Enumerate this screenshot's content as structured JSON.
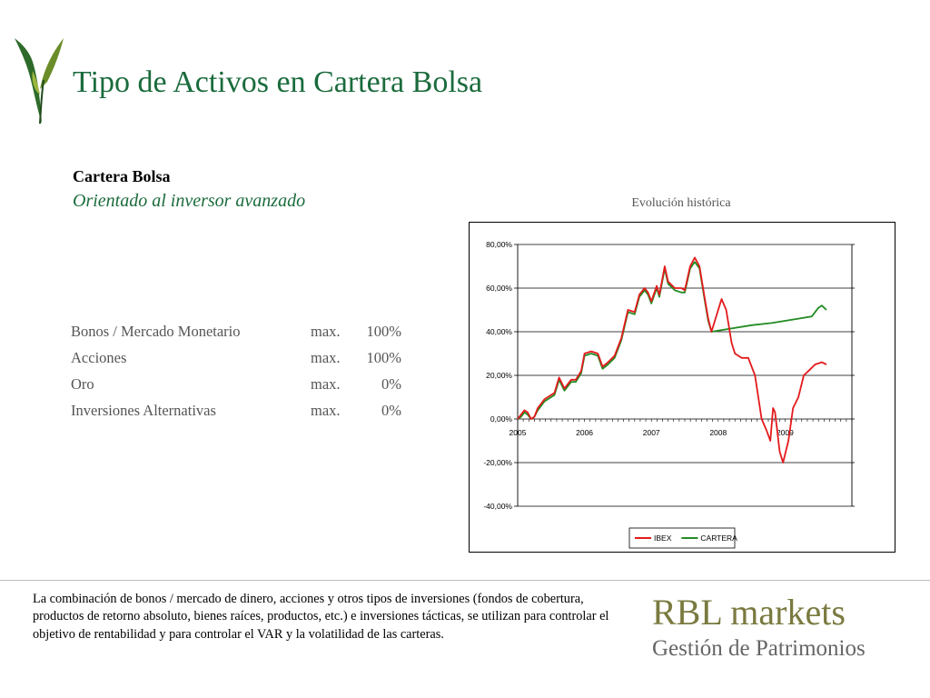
{
  "header": {
    "title": "Tipo de Activos en Cartera Bolsa"
  },
  "colors": {
    "title_green": "#1a6b3c",
    "ibex_red": "#e41a1c",
    "cartera_green": "#228b22",
    "brand_olive": "#7a7a40"
  },
  "logo": {
    "icon": "leaf-sprout-icon"
  },
  "portfolio": {
    "name": "Cartera Bolsa",
    "subtitle": "Orientado al inversor avanzado",
    "allocations": [
      {
        "asset": "Bonos / Mercado Monetario",
        "limit": "max.",
        "value": "100%"
      },
      {
        "asset": "Acciones",
        "limit": "max.",
        "value": "100%"
      },
      {
        "asset": "Oro",
        "limit": "max.",
        "value": "0%"
      },
      {
        "asset": "Inversiones Alternativas",
        "limit": "max.",
        "value": "0%"
      }
    ]
  },
  "chart_caption": "Evolución histórica",
  "chart_data": {
    "type": "line",
    "title": "Evolución histórica",
    "xlabel": "",
    "ylabel": "",
    "xlim": [
      2005,
      2010
    ],
    "ylim": [
      -40,
      80
    ],
    "x_ticks": [
      "2005",
      "2006",
      "2007",
      "2008",
      "2009"
    ],
    "y_ticks": [
      "80,00%",
      "60,00%",
      "40,00%",
      "20,00%",
      "0,00%",
      "-20,00%",
      "-40,00%"
    ],
    "grid": true,
    "legend_position": "bottom",
    "series": [
      {
        "name": "IBEX",
        "color": "#e41a1c",
        "points": [
          [
            2005.0,
            0
          ],
          [
            2005.05,
            2
          ],
          [
            2005.1,
            4
          ],
          [
            2005.15,
            3
          ],
          [
            2005.2,
            0
          ],
          [
            2005.25,
            1
          ],
          [
            2005.3,
            5
          ],
          [
            2005.4,
            9
          ],
          [
            2005.5,
            11
          ],
          [
            2005.55,
            12
          ],
          [
            2005.62,
            19
          ],
          [
            2005.7,
            14
          ],
          [
            2005.8,
            18
          ],
          [
            2005.87,
            18
          ],
          [
            2005.95,
            22
          ],
          [
            2006.0,
            30
          ],
          [
            2006.1,
            31
          ],
          [
            2006.2,
            30
          ],
          [
            2006.27,
            24
          ],
          [
            2006.35,
            26
          ],
          [
            2006.45,
            29
          ],
          [
            2006.55,
            37
          ],
          [
            2006.65,
            50
          ],
          [
            2006.75,
            49
          ],
          [
            2006.82,
            57
          ],
          [
            2006.9,
            60
          ],
          [
            2006.95,
            58
          ],
          [
            2007.0,
            54
          ],
          [
            2007.08,
            61
          ],
          [
            2007.12,
            57
          ],
          [
            2007.2,
            70
          ],
          [
            2007.25,
            63
          ],
          [
            2007.35,
            60
          ],
          [
            2007.45,
            60
          ],
          [
            2007.5,
            59
          ],
          [
            2007.58,
            70
          ],
          [
            2007.65,
            74
          ],
          [
            2007.72,
            70
          ],
          [
            2007.8,
            55
          ],
          [
            2007.85,
            46
          ],
          [
            2007.9,
            40
          ],
          [
            2007.95,
            45
          ],
          [
            2008.05,
            55
          ],
          [
            2008.12,
            50
          ],
          [
            2008.2,
            35
          ],
          [
            2008.25,
            30
          ],
          [
            2008.35,
            28
          ],
          [
            2008.45,
            28
          ],
          [
            2008.55,
            20
          ],
          [
            2008.65,
            0
          ],
          [
            2008.72,
            -5
          ],
          [
            2008.78,
            -10
          ],
          [
            2008.82,
            5
          ],
          [
            2008.85,
            3
          ],
          [
            2008.92,
            -15
          ],
          [
            2008.97,
            -20
          ],
          [
            2009.05,
            -10
          ],
          [
            2009.12,
            5
          ],
          [
            2009.2,
            10
          ],
          [
            2009.28,
            20
          ],
          [
            2009.35,
            22
          ],
          [
            2009.45,
            25
          ],
          [
            2009.55,
            26
          ],
          [
            2009.62,
            25
          ]
        ]
      },
      {
        "name": "CARTERA",
        "color": "#228b22",
        "points": [
          [
            2005.0,
            0
          ],
          [
            2005.05,
            1
          ],
          [
            2005.1,
            3
          ],
          [
            2005.15,
            2
          ],
          [
            2005.2,
            0
          ],
          [
            2005.25,
            1
          ],
          [
            2005.3,
            4
          ],
          [
            2005.4,
            8
          ],
          [
            2005.5,
            10
          ],
          [
            2005.55,
            11
          ],
          [
            2005.62,
            18
          ],
          [
            2005.7,
            13
          ],
          [
            2005.8,
            17
          ],
          [
            2005.87,
            17
          ],
          [
            2005.95,
            21
          ],
          [
            2006.0,
            29
          ],
          [
            2006.1,
            30
          ],
          [
            2006.2,
            29
          ],
          [
            2006.27,
            23
          ],
          [
            2006.35,
            25
          ],
          [
            2006.45,
            28
          ],
          [
            2006.55,
            36
          ],
          [
            2006.65,
            49
          ],
          [
            2006.75,
            48
          ],
          [
            2006.82,
            56
          ],
          [
            2006.9,
            59
          ],
          [
            2006.95,
            57
          ],
          [
            2007.0,
            53
          ],
          [
            2007.08,
            60
          ],
          [
            2007.12,
            56
          ],
          [
            2007.2,
            69
          ],
          [
            2007.25,
            62
          ],
          [
            2007.35,
            59
          ],
          [
            2007.45,
            58
          ],
          [
            2007.5,
            58
          ],
          [
            2007.58,
            69
          ],
          [
            2007.65,
            72
          ],
          [
            2007.72,
            69
          ],
          [
            2007.8,
            54
          ],
          [
            2007.85,
            45
          ],
          [
            2007.9,
            40
          ],
          [
            2008.0,
            40.5
          ],
          [
            2008.2,
            41.5
          ],
          [
            2008.5,
            43
          ],
          [
            2008.8,
            44
          ],
          [
            2009.0,
            45
          ],
          [
            2009.2,
            46
          ],
          [
            2009.4,
            47
          ],
          [
            2009.5,
            51
          ],
          [
            2009.55,
            52
          ],
          [
            2009.62,
            50
          ]
        ]
      }
    ]
  },
  "footer": {
    "description": "La combinación de bonos / mercado de dinero, acciones y otros tipos de inversiones (fondos de cobertura, productos de retorno absoluto, bienes raíces, productos, etc.) e inversiones tácticas, se utilizan para controlar el objetivo de rentabilidad y para controlar el VAR y la volatilidad de las carteras.",
    "brand_name": "RBL markets",
    "brand_tagline": "Gestión de Patrimonios"
  }
}
